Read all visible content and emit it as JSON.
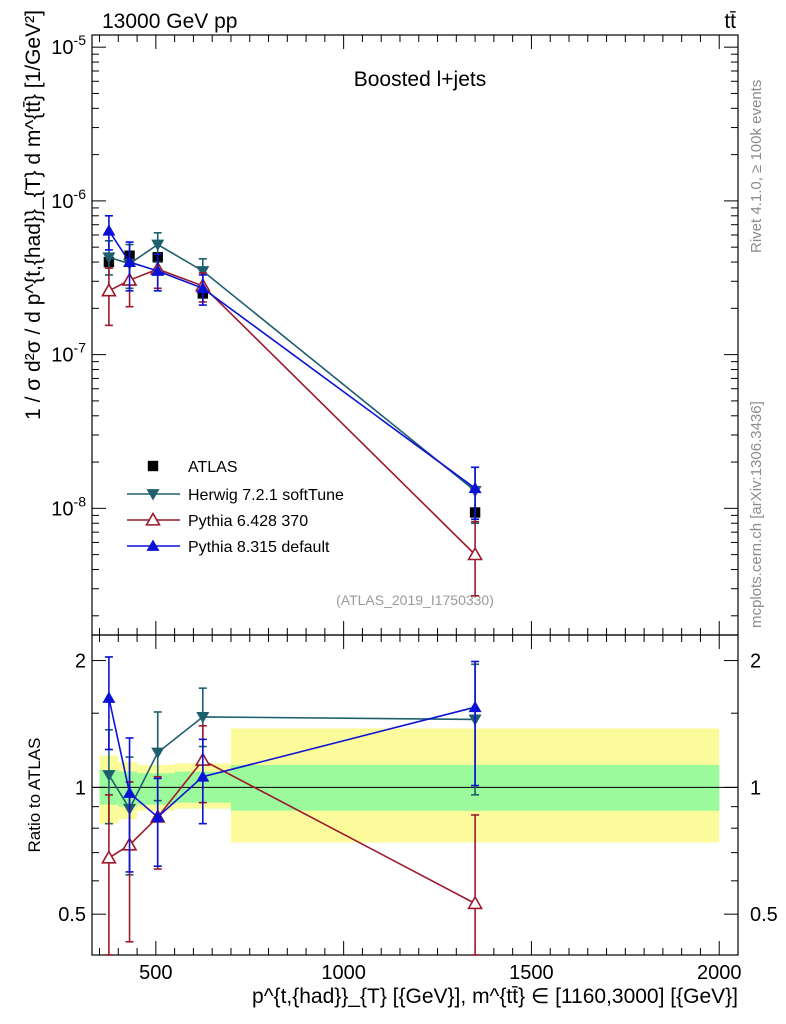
{
  "header": {
    "left": "13000 GeV pp",
    "right": "tt̄"
  },
  "side_labels": {
    "rivet": "Rivet 4.1.0, ≥ 100k events",
    "mcplots": "mcplots.cern.ch [arXiv:1306.3436]"
  },
  "colors": {
    "atlas": "#000000",
    "herwig": "#1e5f6e",
    "pythia6": "#9b1a2c",
    "pythia8": "#0b12d6",
    "band_inner": "#9bfa9b",
    "band_outer": "#fbfb9b"
  },
  "chart_data": [
    {
      "type": "scatter",
      "title": "Boosted l+jets",
      "watermark": "(ATLAS_2019_I1750330)",
      "ylabel": "1 / σ d²σ / d p^{t,{had}}_{T} d m^{tt̄} [1/GeV²]",
      "yscale": "log",
      "ylim": [
        1.5e-09,
        1.2e-05
      ],
      "xlim": [
        330,
        2050
      ],
      "ytick_labels": [
        "10^{-5}",
        "10^{-6}",
        "10^{-7}",
        "10^{-8}"
      ],
      "x": [
        375,
        430,
        505,
        625,
        1350
      ],
      "series": [
        {
          "name": "ATLAS",
          "marker": "square",
          "values": [
            4e-07,
            4.4e-07,
            4.3e-07,
            2.5e-07,
            9.4e-09
          ],
          "err_lo": [
            4e-08,
            4e-08,
            4e-08,
            3e-08,
            1.2e-09
          ],
          "err_hi": [
            4e-08,
            4e-08,
            4e-08,
            3e-08,
            1.2e-09
          ]
        },
        {
          "name": "Herwig 7.2.1 softTune",
          "marker": "triangle-down",
          "values": [
            4.3e-07,
            3.9e-07,
            5.2e-07,
            3.5e-07,
            1.3e-08
          ],
          "err_lo": [
            1e-07,
            1.2e-07,
            1.2e-07,
            7e-08,
            5e-09
          ],
          "err_hi": [
            1.2e-07,
            1.3e-07,
            1e-07,
            7e-08,
            5.5e-09
          ]
        },
        {
          "name": "Pythia 6.428 370",
          "marker": "triangle-open",
          "values": [
            2.6e-07,
            3.05e-07,
            3.6e-07,
            2.8e-07,
            5e-09
          ],
          "err_lo": [
            1.05e-07,
            1e-07,
            9e-08,
            6e-08,
            2.3e-09
          ],
          "err_hi": [
            1.05e-07,
            1e-07,
            9e-08,
            6e-08,
            3.2e-09
          ]
        },
        {
          "name": "Pythia 8.315 default",
          "marker": "triangle-up",
          "values": [
            6.4e-07,
            4e-07,
            3.5e-07,
            2.7e-07,
            1.35e-08
          ],
          "err_lo": [
            1.6e-07,
            1.4e-07,
            9e-08,
            6e-08,
            5e-09
          ],
          "err_hi": [
            1.6e-07,
            1.4e-07,
            1e-07,
            6e-08,
            5e-09
          ]
        }
      ]
    },
    {
      "type": "scatter",
      "ylabel": "Ratio to ATLAS",
      "xlabel": "p^{t,{had}}_{T} [{GeV}], m^{tt̄} ∈ [1160,3000] [{GeV}]",
      "yscale": "log",
      "ylim": [
        0.4,
        2.3
      ],
      "xlim": [
        330,
        2050
      ],
      "yticks": [
        0.5,
        1,
        2
      ],
      "ytick_labels": [
        "0.5",
        "1",
        "2"
      ],
      "xticks": [
        500,
        1000,
        1500,
        2000
      ],
      "xtick_labels": [
        "500",
        "1000",
        "1500",
        "2000"
      ],
      "bins": [
        [
          350,
          400
        ],
        [
          400,
          450
        ],
        [
          450,
          550
        ],
        [
          550,
          700
        ],
        [
          700,
          2000
        ]
      ],
      "band_inner": [
        [
          0.91,
          1.1
        ],
        [
          0.9,
          1.09
        ],
        [
          0.91,
          1.08
        ],
        [
          0.92,
          1.09
        ],
        [
          0.88,
          1.13
        ]
      ],
      "band_outer": [
        [
          0.82,
          1.19
        ],
        [
          0.84,
          1.15
        ],
        [
          0.88,
          1.13
        ],
        [
          0.89,
          1.14
        ],
        [
          0.74,
          1.38
        ]
      ],
      "x": [
        375,
        430,
        505,
        625,
        1350
      ],
      "series": [
        {
          "name": "Herwig 7.2.1 softTune",
          "marker": "triangle-down",
          "values": [
            1.07,
            0.89,
            1.21,
            1.47,
            1.45
          ],
          "err_lo": [
            0.25,
            0.27,
            0.28,
            0.22,
            0.49
          ],
          "err_hi": [
            0.3,
            0.29,
            0.3,
            0.25,
            0.51
          ]
        },
        {
          "name": "Pythia 6.428 370",
          "marker": "triangle-open",
          "values": [
            0.68,
            0.73,
            0.85,
            1.16,
            0.53
          ],
          "err_lo": [
            0.28,
            0.3,
            0.21,
            0.24,
            0.2
          ],
          "err_hi": [
            0.28,
            0.3,
            0.21,
            0.24,
            0.33
          ]
        },
        {
          "name": "Pythia 8.315 default",
          "marker": "triangle-up",
          "values": [
            1.63,
            0.97,
            0.85,
            1.06,
            1.55
          ],
          "err_lo": [
            0.4,
            0.34,
            0.2,
            0.24,
            0.54
          ],
          "err_hi": [
            0.41,
            0.34,
            0.2,
            0.24,
            0.44
          ]
        }
      ]
    }
  ]
}
